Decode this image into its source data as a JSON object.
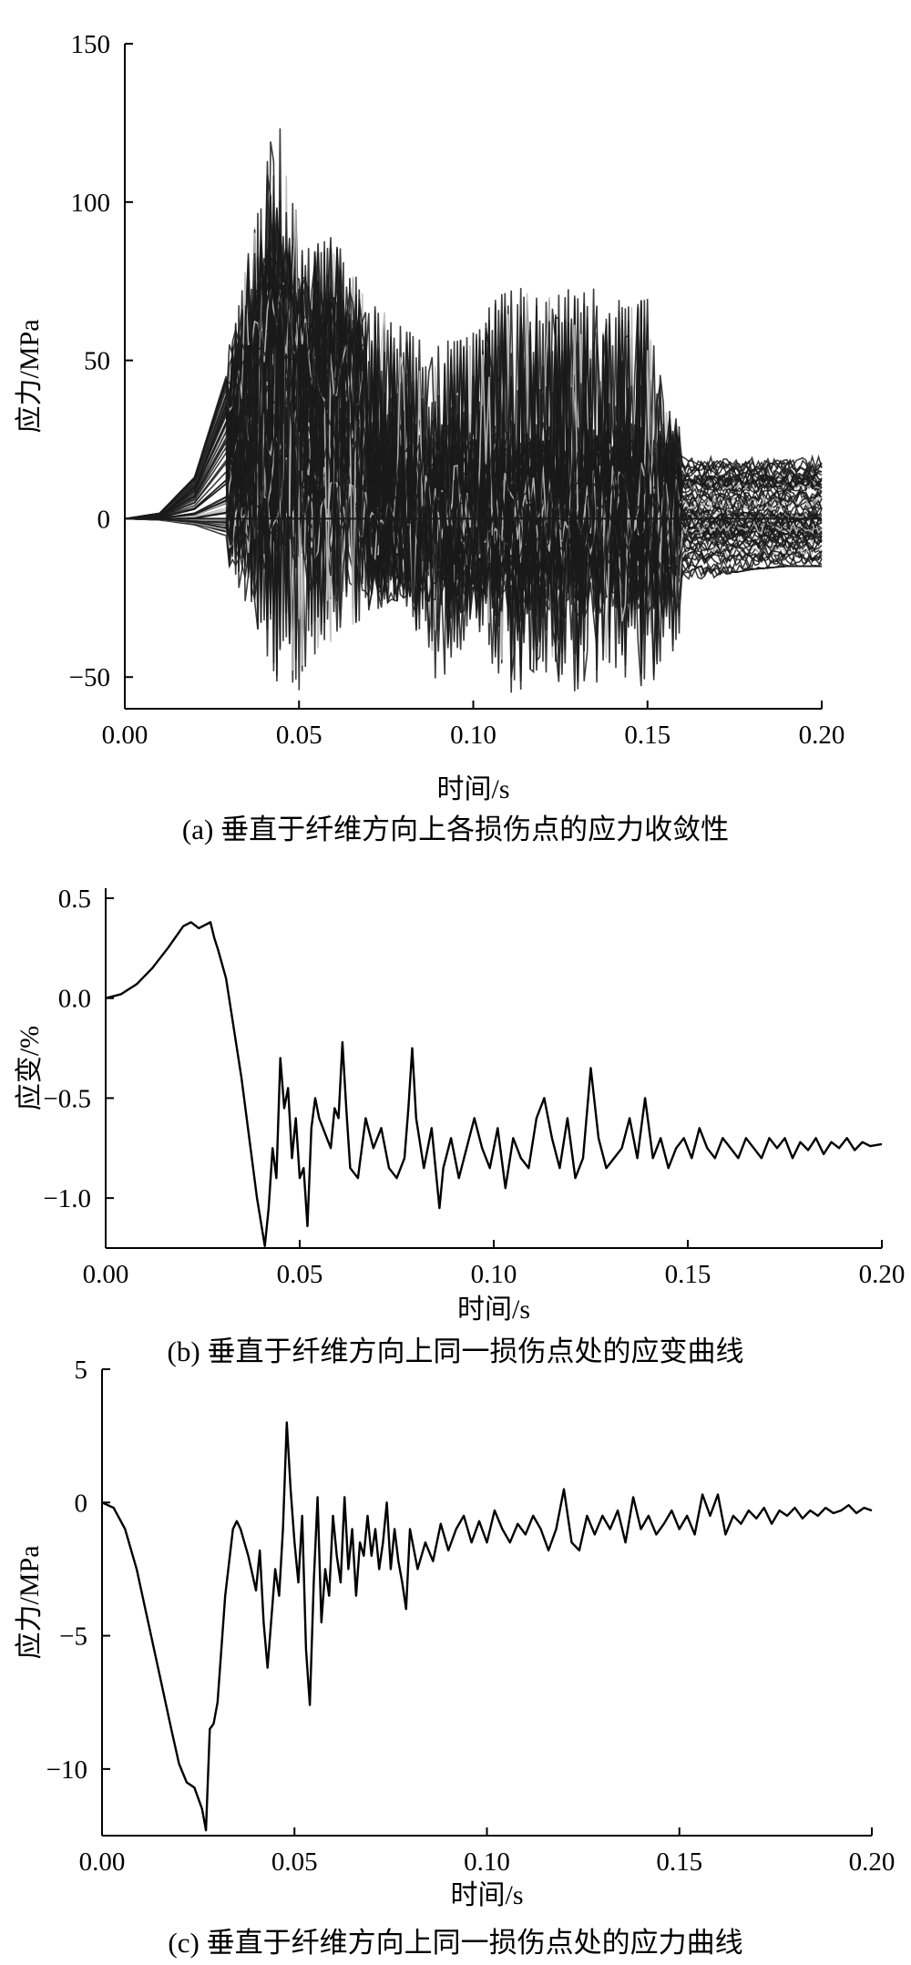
{
  "chart_data": [
    {
      "id": "a",
      "type": "line",
      "caption": "(a) 垂直于纤维方向上各损伤点的应力收敛性",
      "xlabel": "时间/s",
      "ylabel": "应力/MPa",
      "xlim": [
        0.0,
        0.2
      ],
      "ylim": [
        -60,
        150
      ],
      "xticks": [
        0.0,
        0.05,
        0.1,
        0.15,
        0.2
      ],
      "xtick_labels": [
        "0.00",
        "0.05",
        "0.10",
        "0.15",
        "0.20"
      ],
      "yticks": [
        -50,
        0,
        50,
        100,
        150
      ],
      "ytick_labels": [
        "−50",
        "0",
        "50",
        "100",
        "150"
      ],
      "grid": false,
      "legend": "none",
      "series_count_note": "",
      "envelope": {
        "x": [
          0.0,
          0.01,
          0.02,
          0.03,
          0.04,
          0.044,
          0.05,
          0.055,
          0.06,
          0.07,
          0.08,
          0.09,
          0.1,
          0.11,
          0.12,
          0.13,
          0.14,
          0.15,
          0.155,
          0.16,
          0.17,
          0.18,
          0.19,
          0.2
        ],
        "upper": [
          0,
          2,
          15,
          55,
          110,
          131,
          100,
          88,
          90,
          70,
          60,
          55,
          60,
          75,
          70,
          75,
          70,
          70,
          40,
          28,
          27,
          27,
          26,
          26
        ],
        "lower": [
          0,
          -1,
          -5,
          -15,
          -40,
          -58,
          -55,
          -45,
          -40,
          -30,
          -25,
          -55,
          -35,
          -57,
          -50,
          -55,
          -50,
          -55,
          -45,
          -52,
          -18,
          -16,
          -15,
          -15
        ]
      },
      "colors": {
        "dark_lines": "#1a1a1a",
        "light_lines": "#bdbdbd"
      }
    },
    {
      "id": "b",
      "type": "line",
      "caption": "(b) 垂直于纤维方向上同一损伤点处的应变曲线",
      "xlabel": "时间/s",
      "ylabel": "应变/%",
      "xlim": [
        0.0,
        0.2
      ],
      "ylim": [
        -1.25,
        0.55
      ],
      "xticks": [
        0.0,
        0.05,
        0.1,
        0.15,
        0.2
      ],
      "xtick_labels": [
        "0.00",
        "0.05",
        "0.10",
        "0.15",
        "0.20"
      ],
      "yticks": [
        -1.0,
        -0.5,
        0.0,
        0.5
      ],
      "ytick_labels": [
        "−1.0",
        "−0.5",
        "0.0",
        "0.5"
      ],
      "grid": false,
      "legend": "none",
      "series": [
        {
          "x": [
            0.0,
            0.004,
            0.008,
            0.012,
            0.016,
            0.02,
            0.022,
            0.024,
            0.026,
            0.027,
            0.028,
            0.029,
            0.031,
            0.033,
            0.035,
            0.037,
            0.039,
            0.041,
            0.042,
            0.043,
            0.044,
            0.045,
            0.046,
            0.047,
            0.048,
            0.049,
            0.05,
            0.051,
            0.052,
            0.053,
            0.054,
            0.055,
            0.057,
            0.058,
            0.059,
            0.06,
            0.061,
            0.062,
            0.063,
            0.065,
            0.067,
            0.069,
            0.071,
            0.073,
            0.075,
            0.077,
            0.078,
            0.079,
            0.08,
            0.082,
            0.084,
            0.086,
            0.087,
            0.089,
            0.091,
            0.093,
            0.095,
            0.097,
            0.099,
            0.101,
            0.103,
            0.105,
            0.107,
            0.109,
            0.111,
            0.113,
            0.115,
            0.117,
            0.119,
            0.121,
            0.123,
            0.125,
            0.127,
            0.129,
            0.131,
            0.133,
            0.135,
            0.137,
            0.139,
            0.141,
            0.143,
            0.145,
            0.147,
            0.149,
            0.151,
            0.153,
            0.155,
            0.157,
            0.159,
            0.161,
            0.163,
            0.165,
            0.167,
            0.169,
            0.171,
            0.173,
            0.175,
            0.177,
            0.179,
            0.181,
            0.183,
            0.185,
            0.187,
            0.189,
            0.191,
            0.193,
            0.195,
            0.197,
            0.2
          ],
          "y": [
            0.0,
            0.02,
            0.07,
            0.15,
            0.25,
            0.36,
            0.38,
            0.35,
            0.37,
            0.38,
            0.3,
            0.24,
            0.1,
            -0.15,
            -0.4,
            -0.7,
            -1.0,
            -1.24,
            -1.05,
            -0.75,
            -0.9,
            -0.3,
            -0.55,
            -0.45,
            -0.8,
            -0.6,
            -0.9,
            -0.85,
            -1.14,
            -0.65,
            -0.5,
            -0.6,
            -0.7,
            -0.75,
            -0.55,
            -0.6,
            -0.22,
            -0.55,
            -0.85,
            -0.9,
            -0.6,
            -0.75,
            -0.65,
            -0.85,
            -0.9,
            -0.8,
            -0.55,
            -0.25,
            -0.6,
            -0.85,
            -0.65,
            -1.05,
            -0.85,
            -0.7,
            -0.9,
            -0.75,
            -0.6,
            -0.75,
            -0.85,
            -0.65,
            -0.95,
            -0.7,
            -0.8,
            -0.85,
            -0.6,
            -0.5,
            -0.7,
            -0.85,
            -0.6,
            -0.9,
            -0.8,
            -0.35,
            -0.7,
            -0.85,
            -0.8,
            -0.75,
            -0.6,
            -0.8,
            -0.5,
            -0.8,
            -0.7,
            -0.85,
            -0.75,
            -0.7,
            -0.8,
            -0.65,
            -0.75,
            -0.8,
            -0.7,
            -0.75,
            -0.8,
            -0.7,
            -0.75,
            -0.8,
            -0.7,
            -0.75,
            -0.7,
            -0.8,
            -0.72,
            -0.76,
            -0.7,
            -0.78,
            -0.72,
            -0.75,
            -0.7,
            -0.76,
            -0.72,
            -0.74,
            -0.73
          ]
        }
      ]
    },
    {
      "id": "c",
      "type": "line",
      "caption": "(c) 垂直于纤维方向上同一损伤点处的应力曲线",
      "xlabel": "时间/s",
      "ylabel": "应力/MPa",
      "xlim": [
        0.0,
        0.2
      ],
      "ylim": [
        -12.5,
        5
      ],
      "xticks": [
        0.0,
        0.05,
        0.1,
        0.15,
        0.2
      ],
      "xtick_labels": [
        "0.00",
        "0.05",
        "0.10",
        "0.15",
        "0.20"
      ],
      "yticks": [
        -10,
        -5,
        0,
        5
      ],
      "ytick_labels": [
        "−10",
        "−5",
        "0",
        "5"
      ],
      "grid": false,
      "legend": "none",
      "series": [
        {
          "x": [
            0.0,
            0.003,
            0.006,
            0.009,
            0.012,
            0.015,
            0.018,
            0.02,
            0.022,
            0.024,
            0.026,
            0.027,
            0.028,
            0.029,
            0.03,
            0.032,
            0.034,
            0.035,
            0.036,
            0.038,
            0.04,
            0.041,
            0.042,
            0.043,
            0.045,
            0.046,
            0.047,
            0.048,
            0.049,
            0.05,
            0.051,
            0.052,
            0.053,
            0.054,
            0.055,
            0.056,
            0.057,
            0.058,
            0.059,
            0.06,
            0.061,
            0.062,
            0.063,
            0.064,
            0.065,
            0.066,
            0.067,
            0.068,
            0.069,
            0.07,
            0.071,
            0.072,
            0.073,
            0.074,
            0.075,
            0.076,
            0.077,
            0.078,
            0.079,
            0.08,
            0.082,
            0.084,
            0.086,
            0.088,
            0.09,
            0.092,
            0.094,
            0.096,
            0.098,
            0.1,
            0.102,
            0.104,
            0.106,
            0.108,
            0.11,
            0.112,
            0.114,
            0.116,
            0.118,
            0.12,
            0.122,
            0.124,
            0.126,
            0.128,
            0.13,
            0.132,
            0.134,
            0.136,
            0.138,
            0.14,
            0.142,
            0.144,
            0.146,
            0.148,
            0.15,
            0.152,
            0.154,
            0.156,
            0.158,
            0.16,
            0.162,
            0.164,
            0.166,
            0.168,
            0.17,
            0.172,
            0.174,
            0.176,
            0.178,
            0.18,
            0.182,
            0.184,
            0.186,
            0.188,
            0.19,
            0.192,
            0.194,
            0.196,
            0.198,
            0.2
          ],
          "y": [
            0.0,
            -0.2,
            -1.0,
            -2.5,
            -4.5,
            -6.5,
            -8.5,
            -9.8,
            -10.5,
            -10.7,
            -11.5,
            -12.3,
            -8.5,
            -8.3,
            -7.5,
            -3.5,
            -1.0,
            -0.7,
            -1.0,
            -2.0,
            -3.3,
            -1.8,
            -4.5,
            -6.2,
            -2.5,
            -3.5,
            -1.0,
            3.0,
            0.5,
            -1.5,
            -3.0,
            -0.5,
            -5.5,
            -7.6,
            -3.0,
            0.2,
            -4.5,
            -2.5,
            -3.5,
            -0.5,
            -2.0,
            -3.0,
            0.2,
            -2.5,
            -1.0,
            -3.5,
            -1.5,
            -2.0,
            -0.5,
            -2.0,
            -1.0,
            -2.5,
            -1.5,
            0.0,
            -2.5,
            -1.0,
            -2.2,
            -3.0,
            -4.0,
            -1.0,
            -2.5,
            -1.5,
            -2.2,
            -0.8,
            -1.8,
            -1.0,
            -0.5,
            -1.5,
            -0.7,
            -1.5,
            -0.3,
            -1.0,
            -1.5,
            -0.8,
            -1.2,
            -0.5,
            -1.0,
            -1.8,
            -1.0,
            0.5,
            -1.5,
            -1.8,
            -0.5,
            -1.2,
            -0.5,
            -1.0,
            -0.3,
            -1.5,
            0.2,
            -1.0,
            -0.5,
            -1.2,
            -0.8,
            -0.3,
            -1.0,
            -0.5,
            -1.2,
            0.3,
            -0.5,
            0.3,
            -1.2,
            -0.5,
            -0.8,
            -0.3,
            -0.6,
            -0.2,
            -0.8,
            -0.3,
            -0.5,
            -0.2,
            -0.6,
            -0.3,
            -0.5,
            -0.2,
            -0.4,
            -0.3,
            -0.1,
            -0.4,
            -0.2,
            -0.3
          ]
        }
      ]
    }
  ]
}
